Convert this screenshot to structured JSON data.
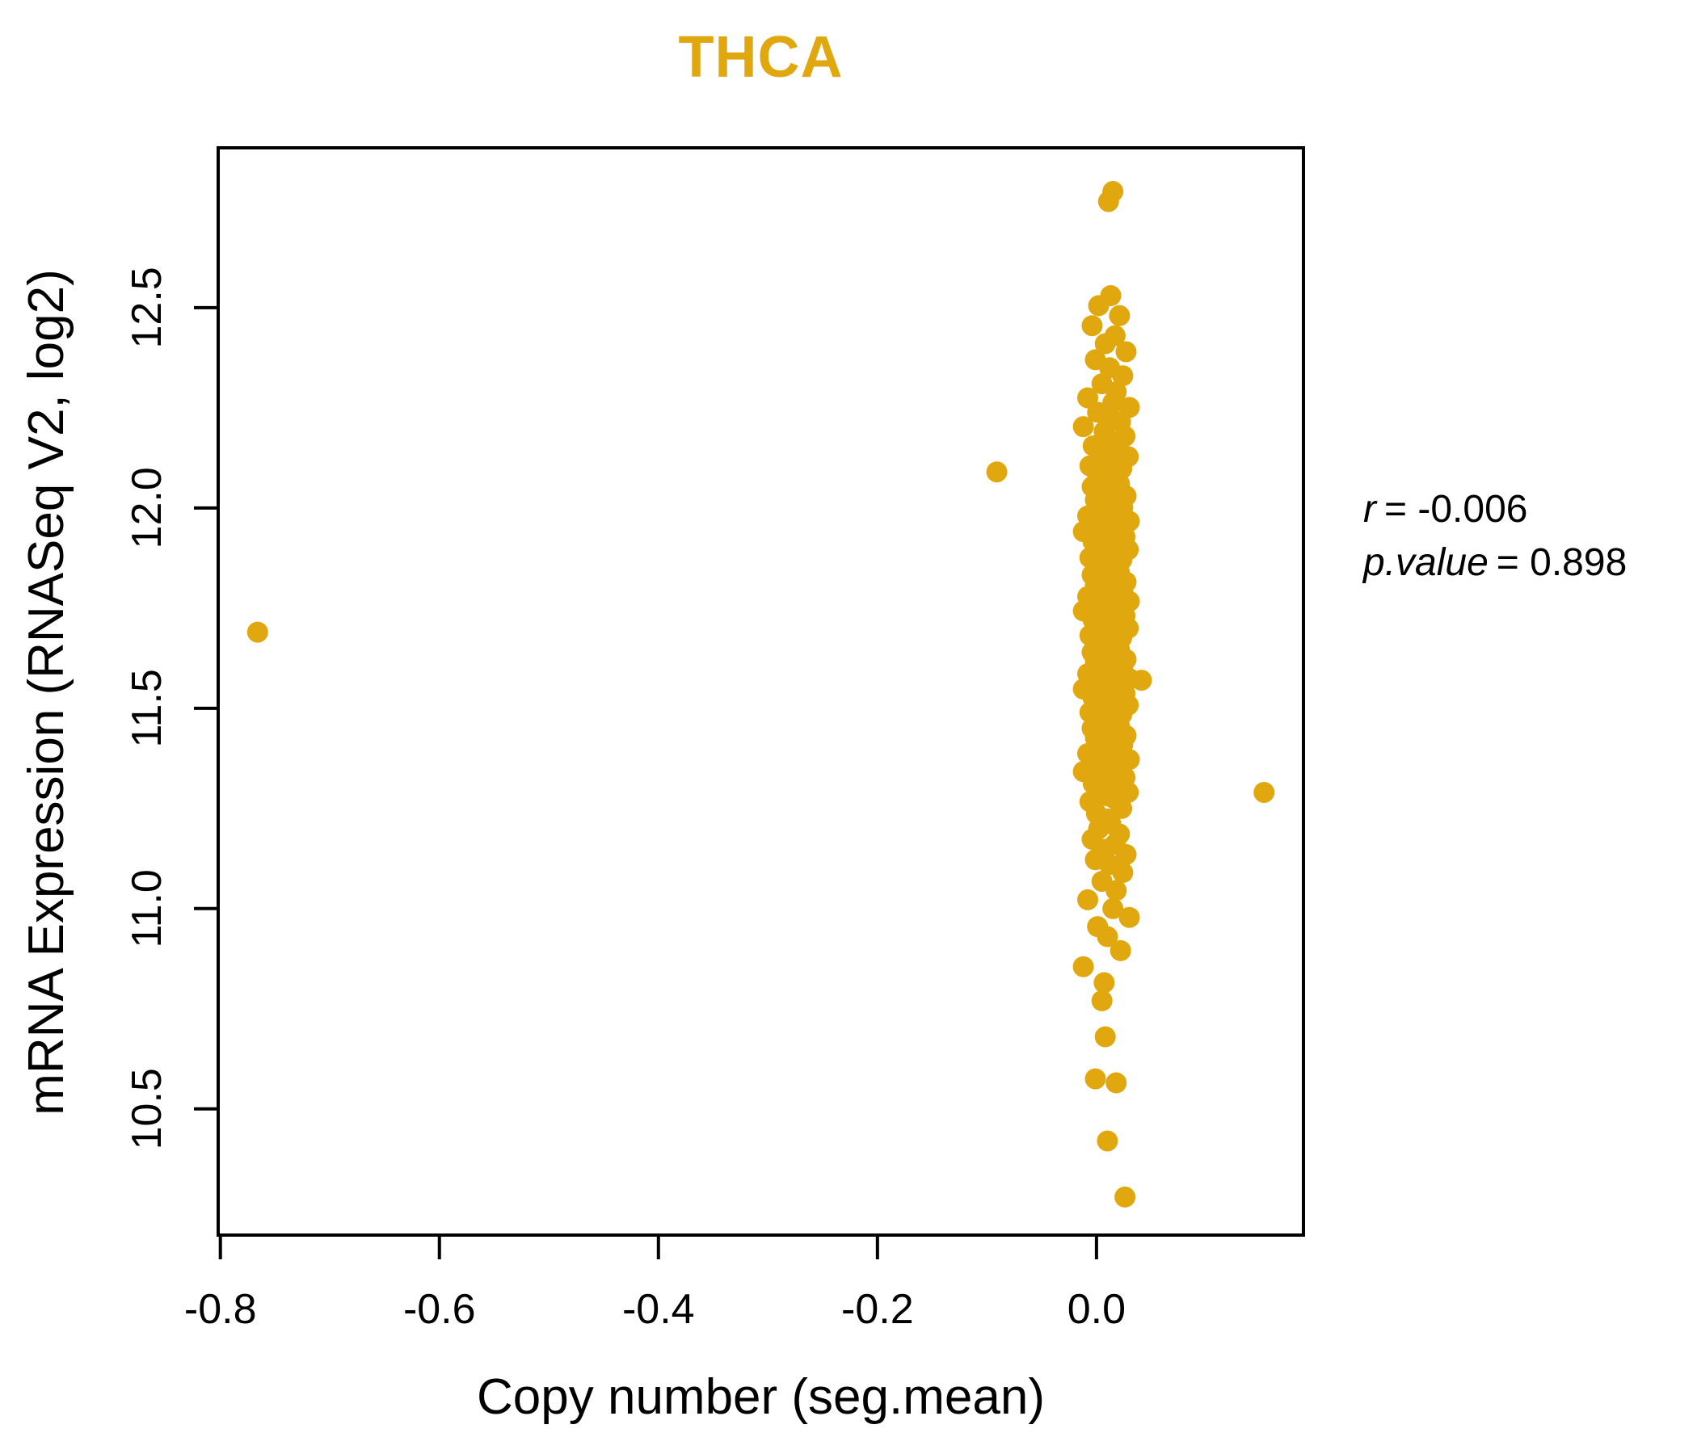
{
  "page_title": "THCA",
  "accent_color": "#E0A70E",
  "chart_data": {
    "type": "scatter",
    "title": "THCA",
    "title_color": "#E0A70E",
    "xlabel": "Copy number (seg.mean)",
    "ylabel": "mRNA Expression (RNASeq V2, log2)",
    "xlim": [
      -0.802,
      0.189
    ],
    "ylim": [
      10.185,
      12.899
    ],
    "x_ticks": [
      -0.8,
      -0.6,
      -0.4,
      -0.2,
      0.0
    ],
    "x_tick_labels": [
      "-0.8",
      "-0.6",
      "-0.4",
      "-0.2",
      "0.0"
    ],
    "y_ticks": [
      10.5,
      11.0,
      11.5,
      12.0,
      12.5
    ],
    "y_tick_labels": [
      "10.5",
      "11.0",
      "11.5",
      "12.0",
      "12.5"
    ],
    "grid": false,
    "legend": null,
    "point_color": "#E0A70E",
    "point_radius_px": 13,
    "correlation": {
      "r": -0.006,
      "p_value": 0.898
    },
    "outliers": [
      [
        -0.766,
        11.69
      ],
      [
        -0.091,
        12.09
      ],
      [
        0.153,
        11.29
      ],
      [
        0.041,
        11.57
      ]
    ],
    "points": [
      [
        -0.766,
        11.69
      ],
      [
        -0.091,
        12.09
      ],
      [
        0.153,
        11.29
      ],
      [
        0.041,
        11.57
      ],
      [
        0.015,
        12.79
      ],
      [
        0.011,
        12.765
      ],
      [
        0.013,
        12.53
      ],
      [
        0.002,
        12.505
      ],
      [
        0.021,
        12.48
      ],
      [
        -0.004,
        12.455
      ],
      [
        0.017,
        12.43
      ],
      [
        0.008,
        12.41
      ],
      [
        0.027,
        12.39
      ],
      [
        -0.001,
        12.37
      ],
      [
        0.012,
        12.35
      ],
      [
        0.024,
        12.33
      ],
      [
        0.005,
        12.31
      ],
      [
        0.018,
        12.29
      ],
      [
        -0.008,
        12.275
      ],
      [
        0.015,
        12.263
      ],
      [
        0.03,
        12.251
      ],
      [
        0.001,
        12.239
      ],
      [
        0.01,
        12.227
      ],
      [
        0.022,
        12.215
      ],
      [
        -0.012,
        12.203
      ],
      [
        0.007,
        12.191
      ],
      [
        0.026,
        12.179
      ],
      [
        0.014,
        12.167
      ],
      [
        -0.003,
        12.155
      ],
      [
        0.019,
        12.143
      ],
      [
        0.003,
        12.135
      ],
      [
        0.029,
        12.128
      ],
      [
        0.009,
        12.12
      ],
      [
        0.016,
        12.113
      ],
      [
        -0.006,
        12.105
      ],
      [
        0.023,
        12.098
      ],
      [
        0.0,
        12.09
      ],
      [
        0.011,
        12.083
      ],
      [
        0.013,
        12.075
      ],
      [
        0.002,
        12.068
      ],
      [
        0.021,
        12.06
      ],
      [
        -0.004,
        12.053
      ],
      [
        0.017,
        12.045
      ],
      [
        0.008,
        12.038
      ],
      [
        0.027,
        12.03
      ],
      [
        -0.001,
        12.02
      ],
      [
        0.012,
        12.01
      ],
      [
        0.024,
        12.001
      ],
      [
        0.005,
        11.993
      ],
      [
        0.018,
        11.987
      ],
      [
        -0.008,
        11.98
      ],
      [
        0.015,
        11.974
      ],
      [
        0.03,
        11.967
      ],
      [
        0.001,
        11.961
      ],
      [
        0.01,
        11.954
      ],
      [
        0.022,
        11.948
      ],
      [
        -0.012,
        11.941
      ],
      [
        0.007,
        11.935
      ],
      [
        0.026,
        11.928
      ],
      [
        0.014,
        11.922
      ],
      [
        -0.003,
        11.915
      ],
      [
        0.019,
        11.909
      ],
      [
        0.003,
        11.902
      ],
      [
        0.029,
        11.896
      ],
      [
        0.009,
        11.889
      ],
      [
        0.016,
        11.883
      ],
      [
        -0.006,
        11.876
      ],
      [
        0.023,
        11.87
      ],
      [
        0.0,
        11.863
      ],
      [
        0.011,
        11.856
      ],
      [
        0.013,
        11.85
      ],
      [
        0.002,
        11.844
      ],
      [
        0.021,
        11.838
      ],
      [
        -0.004,
        11.833
      ],
      [
        0.017,
        11.827
      ],
      [
        0.008,
        11.821
      ],
      [
        0.027,
        11.815
      ],
      [
        -0.001,
        11.809
      ],
      [
        0.012,
        11.803
      ],
      [
        0.024,
        11.797
      ],
      [
        0.005,
        11.791
      ],
      [
        0.018,
        11.785
      ],
      [
        -0.008,
        11.779
      ],
      [
        0.015,
        11.773
      ],
      [
        0.03,
        11.767
      ],
      [
        0.001,
        11.761
      ],
      [
        0.01,
        11.755
      ],
      [
        0.022,
        11.749
      ],
      [
        -0.012,
        11.743
      ],
      [
        0.007,
        11.737
      ],
      [
        0.026,
        11.731
      ],
      [
        0.014,
        11.726
      ],
      [
        -0.003,
        11.72
      ],
      [
        0.019,
        11.712
      ],
      [
        0.003,
        11.706
      ],
      [
        0.029,
        11.7
      ],
      [
        0.009,
        11.694
      ],
      [
        0.016,
        11.688
      ],
      [
        -0.006,
        11.682
      ],
      [
        0.023,
        11.676
      ],
      [
        0.0,
        11.67
      ],
      [
        0.011,
        11.664
      ],
      [
        0.013,
        11.658
      ],
      [
        0.002,
        11.652
      ],
      [
        0.021,
        11.646
      ],
      [
        -0.004,
        11.64
      ],
      [
        0.017,
        11.634
      ],
      [
        0.008,
        11.628
      ],
      [
        0.027,
        11.622
      ],
      [
        -0.001,
        11.616
      ],
      [
        0.012,
        11.61
      ],
      [
        0.024,
        11.604
      ],
      [
        0.005,
        11.598
      ],
      [
        0.018,
        11.592
      ],
      [
        -0.008,
        11.586
      ],
      [
        0.015,
        11.58
      ],
      [
        0.03,
        11.574
      ],
      [
        0.001,
        11.568
      ],
      [
        0.01,
        11.562
      ],
      [
        0.022,
        11.554
      ],
      [
        -0.012,
        11.548
      ],
      [
        0.007,
        11.542
      ],
      [
        0.026,
        11.537
      ],
      [
        0.014,
        11.531
      ],
      [
        -0.003,
        11.525
      ],
      [
        0.019,
        11.519
      ],
      [
        0.003,
        11.513
      ],
      [
        0.029,
        11.508
      ],
      [
        0.009,
        11.502
      ],
      [
        0.016,
        11.496
      ],
      [
        -0.006,
        11.49
      ],
      [
        0.023,
        11.484
      ],
      [
        0.0,
        11.479
      ],
      [
        0.011,
        11.473
      ],
      [
        0.013,
        11.467
      ],
      [
        0.002,
        11.461
      ],
      [
        0.021,
        11.455
      ],
      [
        -0.004,
        11.45
      ],
      [
        0.017,
        11.444
      ],
      [
        0.008,
        11.438
      ],
      [
        0.027,
        11.432
      ],
      [
        -0.001,
        11.426
      ],
      [
        0.012,
        11.421
      ],
      [
        0.024,
        11.41
      ],
      [
        0.005,
        11.402
      ],
      [
        0.018,
        11.395
      ],
      [
        -0.008,
        11.387
      ],
      [
        0.015,
        11.38
      ],
      [
        0.03,
        11.372
      ],
      [
        0.001,
        11.365
      ],
      [
        0.01,
        11.357
      ],
      [
        0.022,
        11.35
      ],
      [
        -0.012,
        11.342
      ],
      [
        0.007,
        11.335
      ],
      [
        0.026,
        11.327
      ],
      [
        0.014,
        11.32
      ],
      [
        -0.003,
        11.312
      ],
      [
        0.019,
        11.305
      ],
      [
        0.003,
        11.297
      ],
      [
        0.029,
        11.29
      ],
      [
        0.009,
        11.282
      ],
      [
        0.016,
        11.275
      ],
      [
        -0.006,
        11.267
      ],
      [
        0.023,
        11.25
      ],
      [
        0.0,
        11.237
      ],
      [
        0.011,
        11.224
      ],
      [
        0.013,
        11.212
      ],
      [
        0.002,
        11.199
      ],
      [
        0.021,
        11.186
      ],
      [
        -0.004,
        11.173
      ],
      [
        0.017,
        11.161
      ],
      [
        0.008,
        11.148
      ],
      [
        0.027,
        11.135
      ],
      [
        -0.001,
        11.122
      ],
      [
        0.012,
        11.11
      ],
      [
        0.024,
        11.09
      ],
      [
        0.005,
        11.068
      ],
      [
        0.018,
        11.045
      ],
      [
        -0.008,
        11.022
      ],
      [
        0.015,
        11.0
      ],
      [
        0.03,
        10.978
      ],
      [
        0.001,
        10.955
      ],
      [
        0.01,
        10.93
      ],
      [
        0.022,
        10.895
      ],
      [
        -0.012,
        10.855
      ],
      [
        0.007,
        10.815
      ],
      [
        0.005,
        10.77
      ],
      [
        0.008,
        10.68
      ],
      [
        -0.001,
        10.575
      ],
      [
        0.018,
        10.565
      ],
      [
        0.01,
        10.42
      ],
      [
        0.026,
        10.28
      ]
    ]
  },
  "annotation": {
    "lines": [
      {
        "var": "r",
        "rest": "= -0.006"
      },
      {
        "var": "p.value",
        "rest": "= 0.898"
      }
    ]
  }
}
